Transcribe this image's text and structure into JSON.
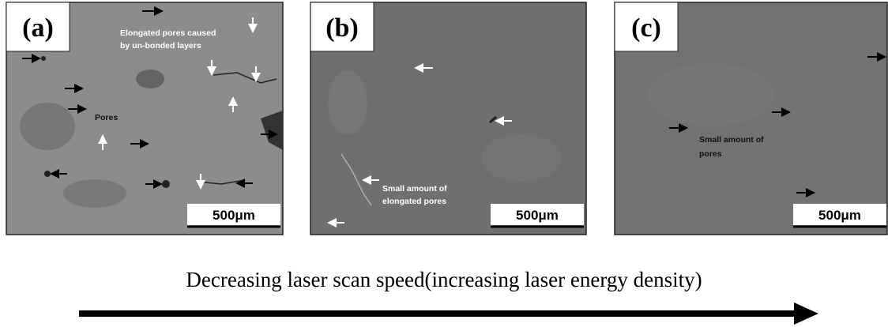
{
  "panels": [
    {
      "label": "(a)",
      "scale_bar": "500μm",
      "annotations": [
        "Elongated pores caused",
        "by un-bonded layers",
        "Pores"
      ]
    },
    {
      "label": "(b)",
      "scale_bar": "500μm",
      "annotations": [
        "Small amount of",
        "elongated pores"
      ]
    },
    {
      "label": "(c)",
      "scale_bar": "500μm",
      "annotations": [
        "Small amount of",
        "pores"
      ]
    }
  ],
  "caption": "Decreasing laser scan speed(increasing laser energy density)"
}
